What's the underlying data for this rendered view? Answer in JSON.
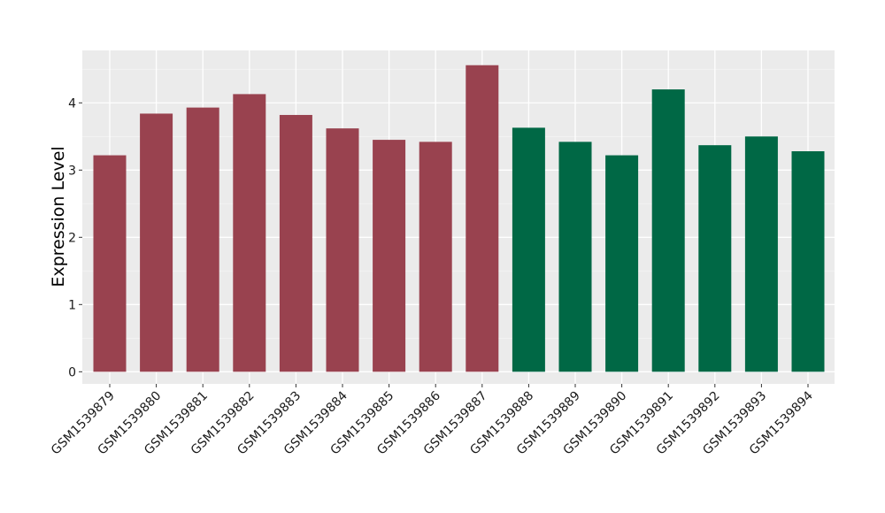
{
  "chart_data": {
    "type": "bar",
    "title": "",
    "xlabel": "",
    "ylabel": "Expression Level",
    "ylim": [
      -0.18,
      4.78
    ],
    "yticks": [
      0,
      1,
      2,
      3,
      4
    ],
    "yticklabels": [
      "0",
      "1",
      "2",
      "3",
      "4"
    ],
    "grid": true,
    "background": "#ebebeb",
    "categories": [
      "GSM1539879",
      "GSM1539880",
      "GSM1539881",
      "GSM1539882",
      "GSM1539883",
      "GSM1539884",
      "GSM1539885",
      "GSM1539886",
      "GSM1539887",
      "GSM1539888",
      "GSM1539889",
      "GSM1539890",
      "GSM1539891",
      "GSM1539892",
      "GSM1539893",
      "GSM1539894"
    ],
    "values": [
      3.22,
      3.84,
      3.93,
      4.13,
      3.82,
      3.62,
      3.45,
      3.42,
      4.56,
      3.63,
      3.42,
      3.22,
      4.2,
      3.37,
      3.5,
      3.28
    ],
    "colors": [
      "#99424f",
      "#99424f",
      "#99424f",
      "#99424f",
      "#99424f",
      "#99424f",
      "#99424f",
      "#99424f",
      "#99424f",
      "#006845",
      "#006845",
      "#006845",
      "#006845",
      "#006845",
      "#006845",
      "#006845"
    ]
  }
}
